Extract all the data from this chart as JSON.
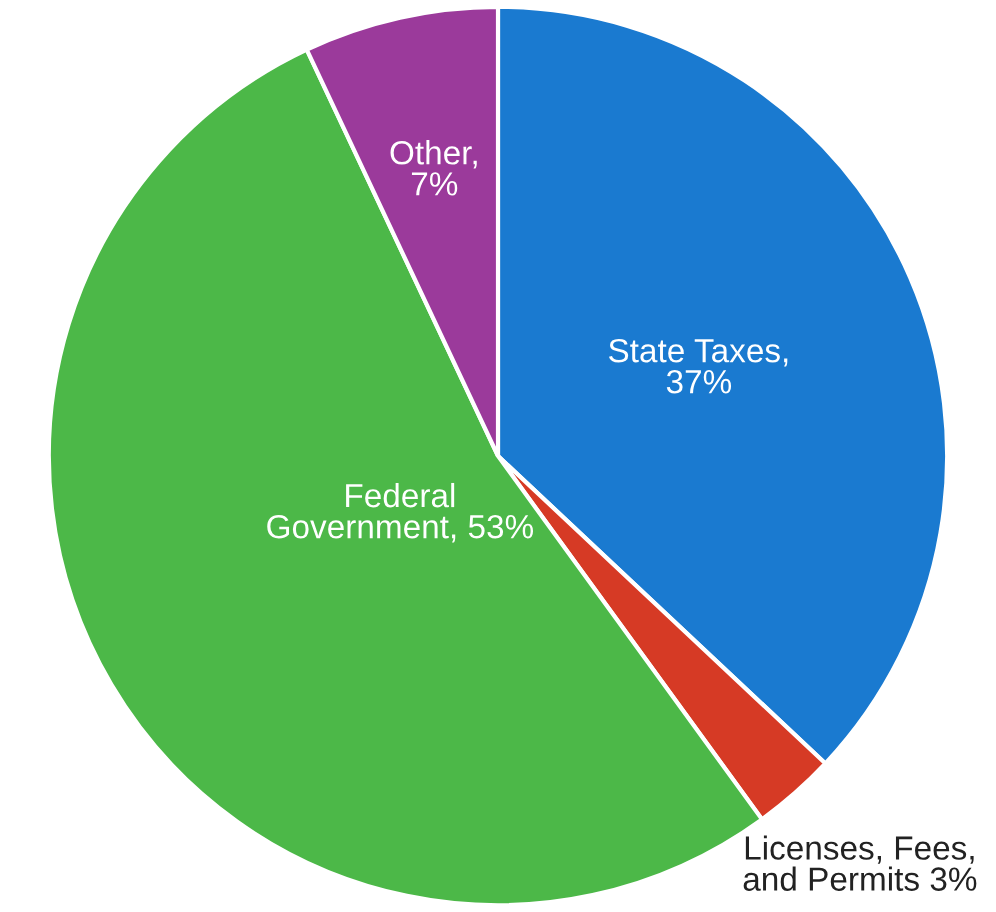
{
  "chart_data": {
    "type": "pie",
    "categories": [
      "State Taxes,\n37%",
      "Licenses, Fees,\nand Permits 3%",
      "Federal\nGovernment, 53%",
      "Other,\n7%"
    ],
    "values": [
      37,
      3,
      53,
      7
    ],
    "colors": [
      "#1a7ad0",
      "#d63a25",
      "#4cb848",
      "#9b3a9b"
    ]
  }
}
